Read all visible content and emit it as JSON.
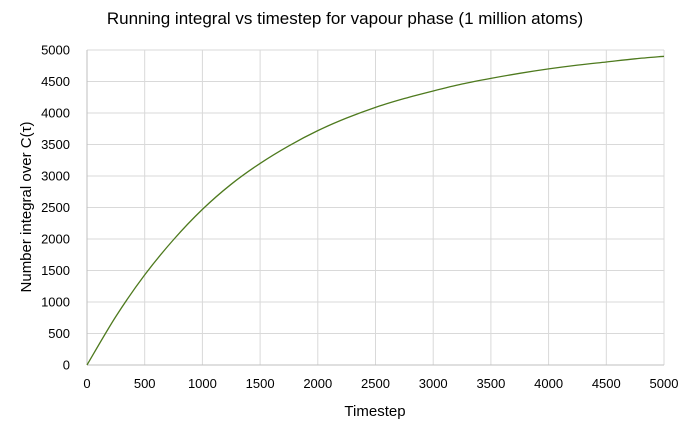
{
  "chart_data": {
    "type": "line",
    "title": "Running integral vs timestep for vapour phase (1 million atoms)",
    "xlabel": "Timestep",
    "ylabel": "Number integral over C(τ)",
    "xlim": [
      0,
      5000
    ],
    "ylim": [
      0,
      5000
    ],
    "xticks": [
      "0",
      "500",
      "1000",
      "1500",
      "2000",
      "2500",
      "3000",
      "3500",
      "4000",
      "4500",
      "5000"
    ],
    "yticks": [
      "0",
      "500",
      "1000",
      "1500",
      "2000",
      "2500",
      "3000",
      "3500",
      "4000",
      "4500",
      "5000"
    ],
    "grid": true,
    "legend": "none",
    "series": [
      {
        "color": "#4e7a1e",
        "x": [
          0,
          250,
          500,
          750,
          1000,
          1250,
          1500,
          1750,
          2000,
          2250,
          2500,
          2750,
          3000,
          3250,
          3500,
          3750,
          4000,
          4250,
          4500,
          4750,
          5000
        ],
        "y": [
          0,
          770,
          1430,
          1990,
          2470,
          2870,
          3200,
          3480,
          3720,
          3920,
          4090,
          4230,
          4350,
          4460,
          4550,
          4630,
          4700,
          4760,
          4810,
          4860,
          4900
        ]
      }
    ]
  }
}
